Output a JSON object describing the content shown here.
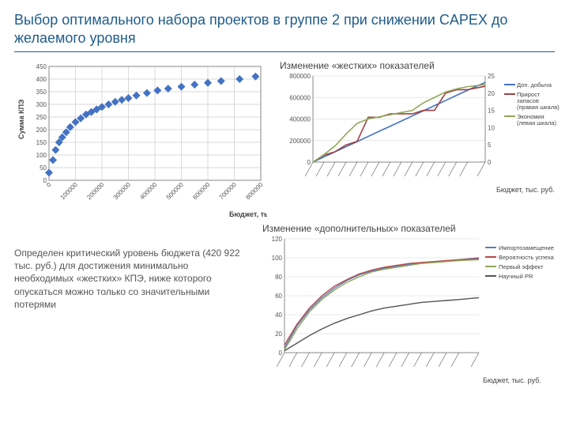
{
  "title": "Выбор оптимального набора проектов в группе 2 при снижении CAPEX до желаемого уровня",
  "caption": "Определен критический уровень бюджета (420 922 тыс. руб.) для достижения минимально необходимых «жестких» КПЭ, ниже которого опускаться можно только со значительными потерями",
  "chart1": {
    "type": "scatter",
    "title": "",
    "xlabel": "Бюджет, тыс. ру",
    "ylabel": "Сумма КПЭ",
    "xlim": [
      0,
      800000
    ],
    "ylim": [
      0,
      450
    ],
    "xtick_step": 100000,
    "ytick_step": 50,
    "label_fontsize": 9,
    "tick_fontsize": 8,
    "marker": "diamond",
    "marker_size": 5,
    "marker_color": "#4472c4",
    "grid_color": "#cccccc",
    "bg": "#ffffff",
    "border": "#888888",
    "x": [
      0,
      15000,
      25000,
      38000,
      50000,
      65000,
      80000,
      100000,
      120000,
      140000,
      160000,
      180000,
      200000,
      225000,
      250000,
      275000,
      300000,
      330000,
      370000,
      410000,
      450000,
      500000,
      550000,
      600000,
      650000,
      720000,
      780000
    ],
    "y": [
      30,
      80,
      120,
      150,
      170,
      190,
      210,
      230,
      245,
      260,
      270,
      280,
      290,
      300,
      310,
      318,
      325,
      335,
      345,
      355,
      362,
      370,
      378,
      385,
      392,
      400,
      410
    ]
  },
  "chart2": {
    "type": "line",
    "title": "Изменение «жестких» показателей",
    "xlabel": "Бюджет, тыс. руб.",
    "y1lim": [
      0,
      800000
    ],
    "y2lim": [
      0,
      25
    ],
    "y1tick": 200000,
    "y2tick": 5,
    "bg": "#ffffff",
    "grid_color": "#e0e0e0",
    "border": "#888888",
    "x": [
      0,
      50000,
      100000,
      150000,
      200000,
      250000,
      300000,
      350000,
      400000,
      450000,
      500000,
      550000,
      600000,
      650000,
      700000,
      780000
    ],
    "series": [
      {
        "name": "Доп. добыча",
        "axis": "left",
        "color": "#4472c4",
        "width": 1.6,
        "y": [
          0,
          48000,
          95000,
          143000,
          190000,
          238000,
          286000,
          333000,
          381000,
          429000,
          476000,
          524000,
          571000,
          619000,
          667000,
          740000
        ]
      },
      {
        "name": "Прирост запасов (правая шкала)",
        "axis": "right",
        "color": "#a04040",
        "width": 1.6,
        "y": [
          0,
          2,
          3,
          5,
          6,
          13,
          13,
          14,
          14,
          14,
          15,
          15,
          20,
          21,
          21,
          22
        ]
      },
      {
        "name": "Экономия (левая шкала)",
        "axis": "left",
        "color": "#8fa85a",
        "width": 1.6,
        "y": [
          0,
          70000,
          150000,
          260000,
          360000,
          400000,
          420000,
          440000,
          460000,
          480000,
          550000,
          600000,
          650000,
          680000,
          700000,
          720000
        ]
      }
    ]
  },
  "chart3": {
    "type": "line",
    "title": "Изменение «дополнительных» показателей",
    "xlabel": "Бюджет, тыс. руб.",
    "ylim": [
      0,
      120
    ],
    "ytick": 20,
    "bg": "#ffffff",
    "grid_color": "#e0e0e0",
    "border": "#888888",
    "x": [
      0,
      50000,
      100000,
      150000,
      200000,
      250000,
      300000,
      350000,
      400000,
      450000,
      500000,
      550000,
      600000,
      650000,
      700000,
      780000
    ],
    "series": [
      {
        "name": "Импортозамещение",
        "color": "#5a7fc0",
        "width": 1.4,
        "y": [
          5,
          28,
          45,
          58,
          68,
          76,
          82,
          86,
          89,
          91,
          93,
          95,
          96,
          97,
          98,
          100
        ]
      },
      {
        "name": "Вероятность успеха",
        "color": "#b84a4a",
        "width": 1.4,
        "y": [
          8,
          30,
          47,
          60,
          70,
          77,
          83,
          87,
          90,
          92,
          94,
          95,
          96,
          97,
          98,
          99
        ]
      },
      {
        "name": "Первый эффект",
        "color": "#8fa85a",
        "width": 1.4,
        "y": [
          3,
          25,
          43,
          56,
          66,
          74,
          80,
          85,
          88,
          90,
          92,
          94,
          95,
          96,
          97,
          98
        ]
      },
      {
        "name": "Научный PR",
        "color": "#555555",
        "width": 1.4,
        "y": [
          2,
          10,
          18,
          25,
          31,
          36,
          40,
          44,
          47,
          49,
          51,
          53,
          54,
          55,
          56,
          58
        ]
      }
    ]
  }
}
